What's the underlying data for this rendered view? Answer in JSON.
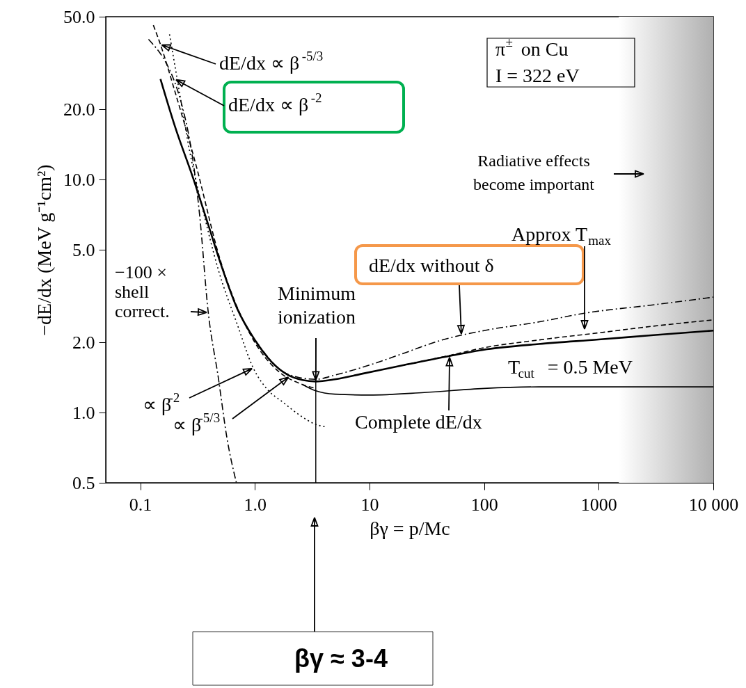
{
  "chart_data": {
    "type": "line",
    "xlabel": "βγ = p/Mc",
    "ylabel": "−dE/dx (MeV g⁻¹cm²)",
    "xlim": [
      0.05,
      10000
    ],
    "ylim": [
      0.5,
      50
    ],
    "log": "xy",
    "xticks": [
      0.1,
      {
        "value": 1,
        "label": "1.0"
      },
      10,
      100,
      1000,
      {
        "value": 10000,
        "label": "10 000"
      }
    ],
    "yticks": [
      0.5,
      {
        "value": 1,
        "label": "1.0"
      },
      {
        "value": 2,
        "label": "2.0"
      },
      {
        "value": 5,
        "label": "5.0"
      },
      {
        "value": 10,
        "label": "10.0"
      },
      {
        "value": 20,
        "label": "20.0"
      },
      {
        "value": 50,
        "label": "50.0"
      }
    ],
    "series": [
      {
        "color": "#000000",
        "line_style": "solid",
        "x": [
          0.15,
          0.2,
          0.29,
          0.4,
          0.5,
          0.7,
          1.0,
          1.4,
          1.95,
          2.6,
          3.4,
          5,
          8.7,
          20,
          50,
          106,
          300,
          1000,
          3000,
          10000
        ],
        "values": [
          27,
          17,
          10.1,
          6.2,
          4.4,
          2.8,
          2.05,
          1.65,
          1.45,
          1.38,
          1.36,
          1.39,
          1.47,
          1.6,
          1.75,
          1.87,
          1.97,
          2.06,
          2.15,
          2.25
        ]
      },
      {
        "color": "#000000",
        "line_style": "dashdot",
        "x": [
          1.0,
          1.95,
          3.4,
          5,
          10,
          20,
          43,
          100,
          300,
          750,
          3000,
          10000
        ],
        "values": [
          2.05,
          1.46,
          1.39,
          1.45,
          1.6,
          1.8,
          2.05,
          2.25,
          2.45,
          2.67,
          2.9,
          3.13
        ]
      },
      {
        "color": "#000000",
        "line_style": "dashed",
        "x": [
          20,
          50,
          100,
          300,
          1000,
          3000,
          10000
        ],
        "values": [
          1.6,
          1.76,
          1.9,
          2.05,
          2.2,
          2.35,
          2.5
        ]
      },
      {
        "color": "#000000",
        "line_style": "solid",
        "x": [
          2.6,
          3.4,
          5,
          10,
          30,
          100,
          300,
          1000,
          10000
        ],
        "values": [
          1.32,
          1.24,
          1.2,
          1.19,
          1.22,
          1.27,
          1.29,
          1.29,
          1.29
        ]
      },
      {
        "color": "#000000",
        "line_style": "dotted",
        "x": [
          0.18,
          0.21,
          0.27,
          0.35,
          0.48,
          0.7,
          0.97,
          1.3,
          1.75,
          2.5,
          3.4,
          4.1
        ],
        "values": [
          42,
          27,
          13.2,
          7.5,
          4.1,
          2.4,
          1.55,
          1.25,
          1.11,
          0.97,
          0.89,
          0.87
        ]
      },
      {
        "color": "#000000",
        "line_style": "dashed",
        "x": [
          0.13,
          0.15,
          0.2,
          0.3,
          0.5,
          1.0,
          1.5,
          2.6,
          3.4
        ],
        "values": [
          46,
          38,
          24,
          12,
          4.5,
          2.0,
          1.55,
          1.32,
          1.27
        ]
      },
      {
        "color": "#000000",
        "line_style": "dashdot",
        "x": [
          0.118,
          0.25,
          0.33,
          0.39,
          0.48,
          0.57,
          0.69
        ],
        "values": [
          40,
          17.8,
          7.0,
          2.75,
          1.41,
          0.78,
          0.5
        ]
      }
    ],
    "ref_lines": [
      {
        "axis": "x",
        "value": 3.4,
        "color": "#000000"
      }
    ],
    "bands": [
      {
        "axis": "x",
        "from": 1500,
        "to": 10000,
        "color": "#b0b0b0"
      }
    ],
    "annotations": [
      {
        "text": "dE/dx ∝ β$^{-5/3}$",
        "x": 0.15,
        "y": 38
      },
      {
        "text": "dE/dx ∝ β$^{-2}$",
        "x": 0.2,
        "y": 27
      },
      "π$^{±}$ on Cu",
      "I = 322 eV",
      "Radiative effects\nbecome important",
      "Approx T$_{max}$",
      "dE/dx without δ",
      {
        "text": "Complete dE/dx",
        "x": 50,
        "y": 1.75
      },
      "T$_{cut}$ = 0.5 MeV",
      {
        "text": "Minimum\nionization",
        "x": 3.4,
        "y": 1.36
      },
      {
        "text": "−100 ×\nshell\ncorrect.",
        "x": 0.39,
        "y": 2.69
      },
      "∝ β$^{-2}$",
      "∝ β$^{-5/3}$",
      "βγ ≈ 3-4"
    ]
  }
}
